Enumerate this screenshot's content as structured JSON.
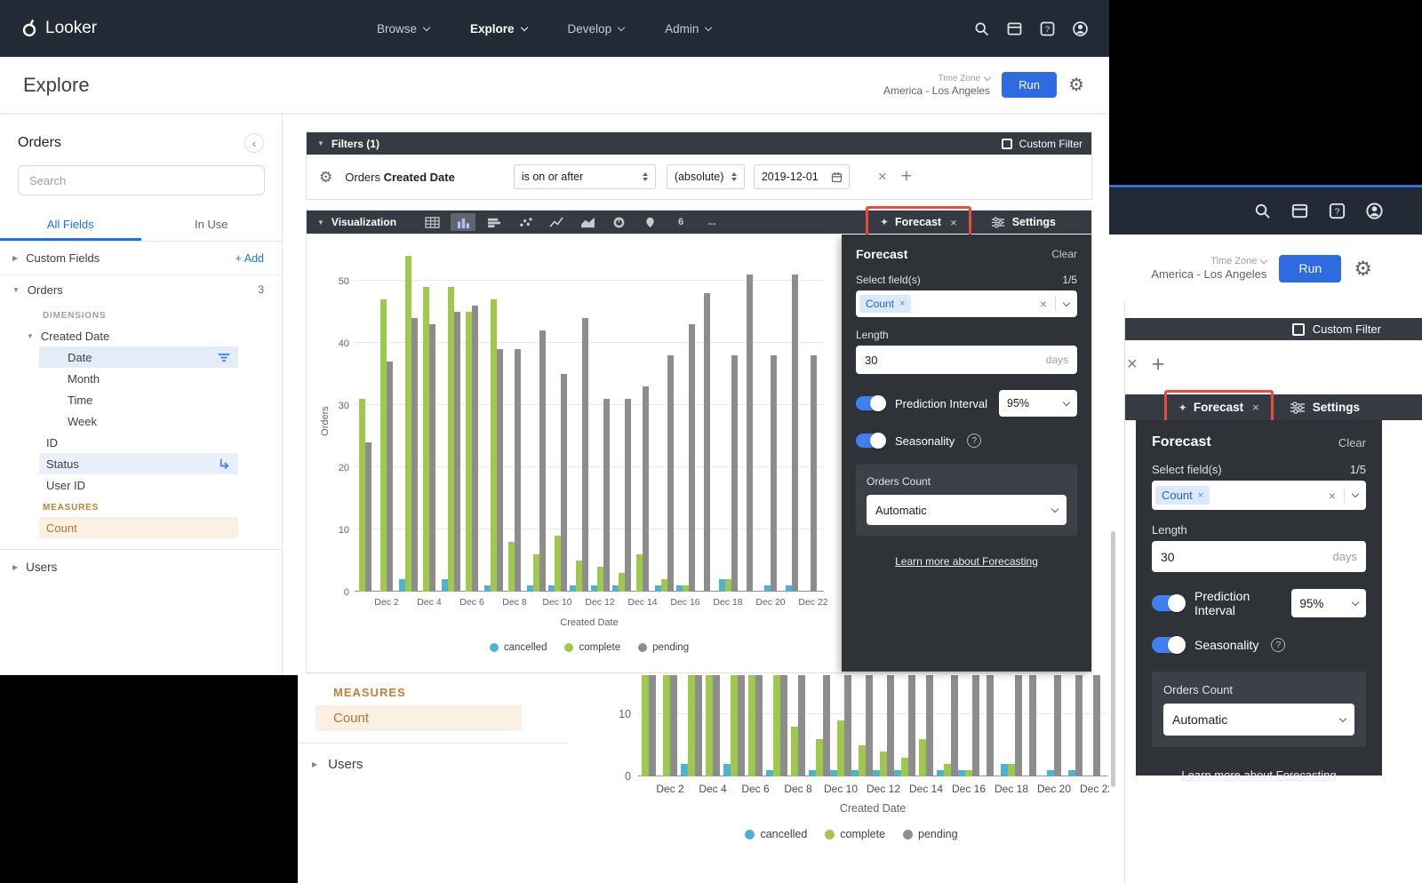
{
  "nav": {
    "logo_text": "Looker",
    "items": [
      {
        "label": "Browse"
      },
      {
        "label": "Explore"
      },
      {
        "label": "Develop"
      },
      {
        "label": "Admin"
      }
    ]
  },
  "header": {
    "title": "Explore",
    "timezone_label": "Time Zone",
    "timezone_value": "America - Los Angeles",
    "run_label": "Run"
  },
  "sidebar": {
    "title": "Orders",
    "search_placeholder": "Search",
    "tab_all_fields": "All Fields",
    "tab_in_use": "In Use",
    "custom_fields_label": "Custom Fields",
    "add_label": "+ Add",
    "orders_group_label": "Orders",
    "orders_group_count": "3",
    "dimensions_label": "DIMENSIONS",
    "created_date_label": "Created Date",
    "date_fields": [
      "Date",
      "Month",
      "Time",
      "Week"
    ],
    "id_label": "ID",
    "status_label": "Status",
    "user_id_label": "User ID",
    "measures_label": "MEASURES",
    "count_label": "Count",
    "users_label": "Users"
  },
  "filters": {
    "bar_label": "Filters (1)",
    "custom_filter_label": "Custom Filter",
    "field_group": "Orders",
    "field_name": "Created Date",
    "operator_value": "is on or after",
    "mode_value": "(absolute)",
    "date_value": "2019-12-01"
  },
  "viz": {
    "bar_label": "Visualization",
    "single_value_icon_label": "6",
    "overflow_icon_label": "...",
    "forecast_tab_label": "Forecast",
    "settings_tab_label": "Settings"
  },
  "forecast": {
    "title": "Forecast",
    "clear_label": "Clear",
    "select_fields_label": "Select field(s)",
    "select_fields_counter": "1/5",
    "selected_field_chip": "Count",
    "length_label": "Length",
    "length_value": "30",
    "length_unit": "days",
    "prediction_interval_label": "Prediction Interval",
    "prediction_interval_value": "95%",
    "seasonality_label": "Seasonality",
    "orders_count_label": "Orders Count",
    "orders_count_value": "Automatic",
    "learn_more_label": "Learn more about Forecasting"
  },
  "icons": {
    "gear": "⚙",
    "close": "×",
    "add": "+",
    "collapse": "‹",
    "chevron_right": "▶",
    "chevron_down": "▼",
    "sparkle": "✦",
    "help": "?"
  },
  "colors": {
    "accent_blue": "#1a73e8",
    "run_button": "#2e6ae0",
    "measure_orange": "#c57f2e",
    "annotation_red": "#e74c3c",
    "cancelled": "#4eb3cf",
    "complete": "#a0c84e",
    "pending": "#8d8d8d"
  },
  "chart_data": {
    "type": "bar",
    "title": "",
    "xlabel": "Created Date",
    "ylabel": "Orders",
    "ylim": [
      0,
      55
    ],
    "yticks": [
      0,
      10,
      20,
      30,
      40,
      50
    ],
    "x_tick_interval": 2,
    "legend_position": "bottom",
    "grid": true,
    "categories": [
      "Dec 1",
      "Dec 2",
      "Dec 3",
      "Dec 4",
      "Dec 5",
      "Dec 6",
      "Dec 7",
      "Dec 8",
      "Dec 9",
      "Dec 10",
      "Dec 11",
      "Dec 12",
      "Dec 13",
      "Dec 14",
      "Dec 15",
      "Dec 16",
      "Dec 17",
      "Dec 18",
      "Dec 19",
      "Dec 20",
      "Dec 21",
      "Dec 22"
    ],
    "series": [
      {
        "name": "cancelled",
        "color": "#4eb3cf",
        "values": [
          0,
          0,
          2,
          0,
          2,
          0,
          1,
          0,
          1,
          1,
          1,
          1,
          1,
          0,
          1,
          1,
          0,
          2,
          0,
          1,
          1,
          0
        ]
      },
      {
        "name": "complete",
        "color": "#a0c84e",
        "values": [
          31,
          47,
          54,
          49,
          49,
          45,
          47,
          8,
          6,
          9,
          5,
          4,
          3,
          6,
          2,
          1,
          0,
          2,
          0,
          0,
          0,
          0
        ]
      },
      {
        "name": "pending",
        "color": "#8d8d8d",
        "values": [
          24,
          37,
          44,
          43,
          45,
          46,
          39,
          39,
          42,
          35,
          44,
          31,
          31,
          33,
          38,
          43,
          48,
          38,
          51,
          38,
          51,
          38
        ]
      }
    ]
  }
}
